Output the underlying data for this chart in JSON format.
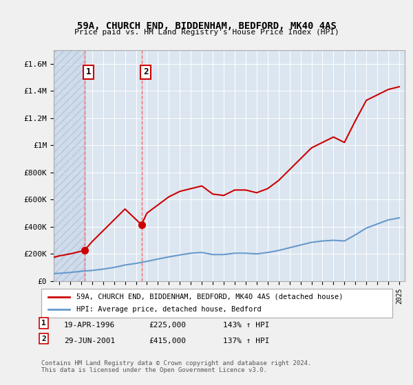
{
  "title": "59A, CHURCH END, BIDDENHAM, BEDFORD, MK40 4AS",
  "subtitle": "Price paid vs. HM Land Registry's House Price Index (HPI)",
  "background_color": "#e8eef4",
  "plot_bg_color": "#dce6f0",
  "hatch_region_end": 1996.33,
  "hatch_region_start": 1993.5,
  "ylim": [
    0,
    1700000
  ],
  "xlim": [
    1993.5,
    2025.5
  ],
  "yticks": [
    0,
    200000,
    400000,
    600000,
    800000,
    1000000,
    1200000,
    1400000,
    1600000
  ],
  "ytick_labels": [
    "£0",
    "£200K",
    "£400K",
    "£600K",
    "£800K",
    "£1M",
    "£1.2M",
    "£1.4M",
    "£1.6M"
  ],
  "xticks": [
    1994,
    1995,
    1996,
    1997,
    1998,
    1999,
    2000,
    2001,
    2002,
    2003,
    2004,
    2005,
    2006,
    2007,
    2008,
    2009,
    2010,
    2011,
    2012,
    2013,
    2014,
    2015,
    2016,
    2017,
    2018,
    2019,
    2020,
    2021,
    2022,
    2023,
    2024,
    2025
  ],
  "sale1_x": 1996.3,
  "sale1_y": 225000,
  "sale1_label": "1",
  "sale1_date": "19-APR-1996",
  "sale1_price": "£225,000",
  "sale1_hpi": "143% ↑ HPI",
  "sale2_x": 2001.5,
  "sale2_y": 415000,
  "sale2_label": "2",
  "sale2_date": "29-JUN-2001",
  "sale2_price": "£415,000",
  "sale2_hpi": "137% ↑ HPI",
  "red_line_color": "#cc0000",
  "blue_line_color": "#6699cc",
  "marker_color": "#cc0000",
  "dashed_line_color": "#ff6666",
  "legend_label_red": "59A, CHURCH END, BIDDENHAM, BEDFORD, MK40 4AS (detached house)",
  "legend_label_blue": "HPI: Average price, detached house, Bedford",
  "footer": "Contains HM Land Registry data © Crown copyright and database right 2024.\nThis data is licensed under the Open Government Licence v3.0.",
  "hpi_x": [
    1993.5,
    1994,
    1995,
    1996,
    1997,
    1998,
    1999,
    2000,
    2001,
    2002,
    2003,
    2004,
    2005,
    2006,
    2007,
    2008,
    2009,
    2010,
    2011,
    2012,
    2013,
    2014,
    2015,
    2016,
    2017,
    2018,
    2019,
    2020,
    2021,
    2022,
    2023,
    2024,
    2025
  ],
  "hpi_y": [
    55000,
    57000,
    63000,
    72000,
    78000,
    88000,
    100000,
    118000,
    130000,
    145000,
    162000,
    178000,
    192000,
    205000,
    210000,
    195000,
    195000,
    205000,
    205000,
    200000,
    210000,
    225000,
    245000,
    265000,
    285000,
    295000,
    300000,
    295000,
    340000,
    390000,
    420000,
    450000,
    465000
  ],
  "red_x": [
    1993.5,
    1994,
    1995,
    1996.3,
    1997,
    1998,
    1999,
    2000,
    2001.5,
    2002,
    2003,
    2004,
    2005,
    2006,
    2007,
    2008,
    2009,
    2010,
    2011,
    2012,
    2013,
    2014,
    2015,
    2016,
    2017,
    2018,
    2019,
    2020,
    2021,
    2022,
    2023,
    2024,
    2025
  ],
  "red_y": [
    175000,
    185000,
    200000,
    225000,
    290000,
    370000,
    450000,
    530000,
    415000,
    500000,
    560000,
    620000,
    660000,
    680000,
    700000,
    640000,
    630000,
    670000,
    670000,
    650000,
    680000,
    740000,
    820000,
    900000,
    980000,
    1020000,
    1060000,
    1020000,
    1180000,
    1330000,
    1370000,
    1410000,
    1430000
  ]
}
